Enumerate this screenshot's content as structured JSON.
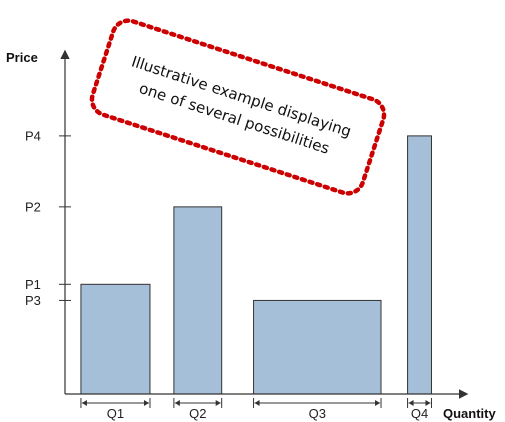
{
  "chart_data": {
    "type": "bar",
    "xlabel": "Quantity",
    "ylabel": "Price",
    "categories": [
      "Q1",
      "Q2",
      "Q3",
      "Q4"
    ],
    "price_ticks": [
      {
        "label": "P4",
        "value": 4.0
      },
      {
        "label": "P2",
        "value": 2.9
      },
      {
        "label": "P1",
        "value": 1.7
      },
      {
        "label": "P3",
        "value": 1.45
      }
    ],
    "bars": [
      {
        "category": "Q1",
        "quantity_start": 0.0,
        "quantity_end": 2.6,
        "price": 1.7
      },
      {
        "category": "Q2",
        "quantity_start": 3.5,
        "quantity_end": 5.3,
        "price": 2.9
      },
      {
        "category": "Q3",
        "quantity_start": 6.5,
        "quantity_end": 11.3,
        "price": 1.45
      },
      {
        "category": "Q4",
        "quantity_start": 12.3,
        "quantity_end": 13.2,
        "price": 4.0
      }
    ],
    "xlim": [
      -0.6,
      14.5
    ],
    "ylim": [
      0,
      5.3
    ],
    "bar_color": "#a6bfd8",
    "bar_edge": "#333333",
    "axis_color": "#333333",
    "annotation": {
      "lines": [
        "Illustrative example displaying",
        "one of several possibilities"
      ],
      "border_color": "#cc0000"
    }
  }
}
